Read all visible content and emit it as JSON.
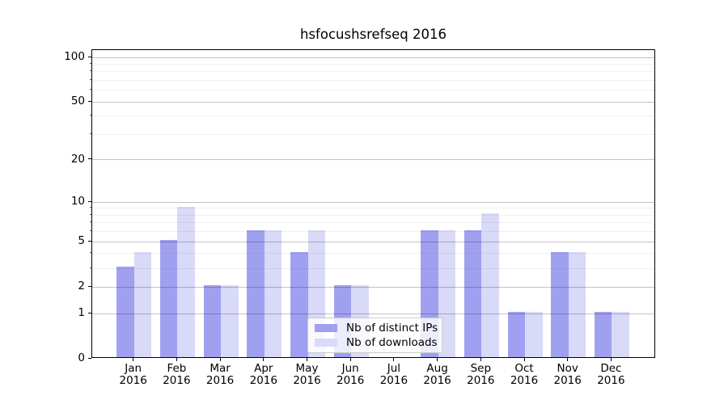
{
  "title": "hsfocushsrefseq 2016",
  "colors": {
    "ips": "#a0a0f0",
    "downloads": "#d9d9f8",
    "axis": "#000000",
    "legend_border": "#cccccc",
    "legend_bg": "rgba(255,255,255,0.8)"
  },
  "legend": {
    "items": [
      {
        "label": "Nb of distinct IPs",
        "key": "ips"
      },
      {
        "label": "Nb of downloads",
        "key": "downloads"
      }
    ]
  },
  "chart_data": {
    "type": "bar",
    "title": "hsfocushsrefseq 2016",
    "xlabel": "",
    "ylabel": "",
    "scale": "log10(1+v)",
    "grid": "horizontal",
    "legend_position": "lower center",
    "categories": [
      "Jan 2016",
      "Feb 2016",
      "Mar 2016",
      "Apr 2016",
      "May 2016",
      "Jun 2016",
      "Jul 2016",
      "Aug 2016",
      "Sep 2016",
      "Oct 2016",
      "Nov 2016",
      "Dec 2016"
    ],
    "series": [
      {
        "name": "Nb of distinct IPs",
        "key": "ips",
        "values": [
          3,
          5,
          2,
          6,
          4,
          2,
          0,
          6,
          6,
          1,
          4,
          1
        ]
      },
      {
        "name": "Nb of downloads",
        "key": "downloads",
        "values": [
          4,
          9,
          2,
          6,
          6,
          2,
          0,
          6,
          8,
          1,
          4,
          1
        ]
      }
    ],
    "y_major_ticks": [
      0,
      1,
      2,
      5,
      10,
      20,
      50,
      100
    ],
    "y_minor_ticks": [
      3,
      4,
      6,
      7,
      8,
      9,
      30,
      40,
      60,
      70,
      80,
      90
    ],
    "ylim": [
      0,
      112
    ]
  }
}
